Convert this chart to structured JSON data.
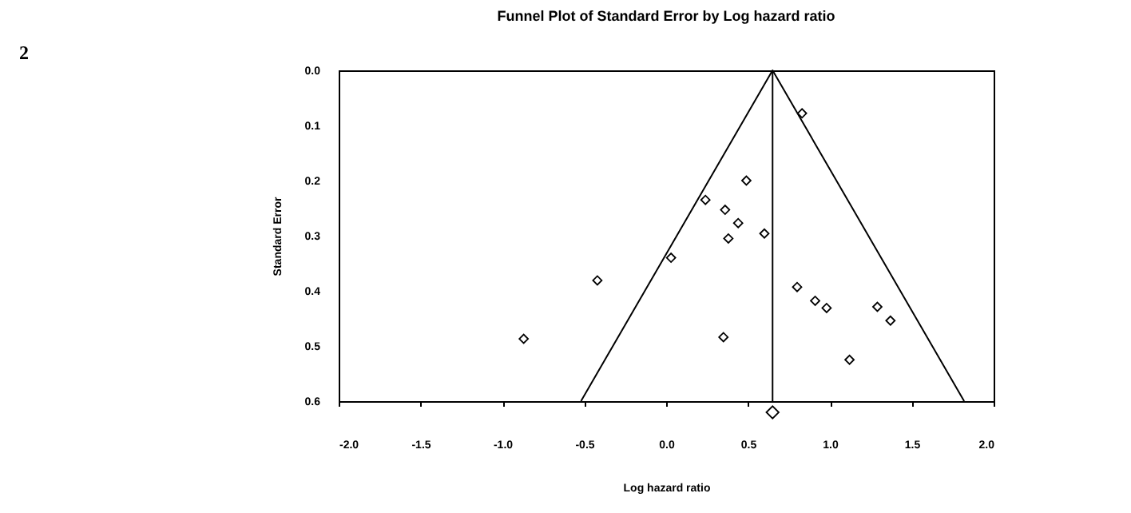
{
  "chart_data": {
    "type": "scatter",
    "title": "Funnel Plot of Standard Error by Log hazard ratio",
    "xlabel": "Log hazard ratio",
    "ylabel": "Standard Error",
    "annotations": [
      "2"
    ],
    "series": [
      {
        "color": "#000000",
        "marker": "diamond",
        "x": [
          0.83,
          0.49,
          0.24,
          0.36,
          0.44,
          0.38,
          0.6,
          0.03,
          -0.42,
          -0.87,
          0.35,
          0.8,
          0.91,
          0.98,
          1.29,
          1.37,
          1.12
        ],
        "values": [
          0.078,
          0.2,
          0.235,
          0.253,
          0.277,
          0.305,
          0.296,
          0.34,
          0.381,
          0.487,
          0.484,
          0.393,
          0.418,
          0.431,
          0.429,
          0.454,
          0.525
        ]
      },
      {
        "type": "line",
        "color": "#000000",
        "line_style": "solid",
        "x": [
          -0.52,
          0.65,
          1.82
        ],
        "values": [
          0.6,
          0.0,
          0.6
        ]
      }
    ],
    "ref_lines": [
      {
        "axis": "x",
        "value": 0.65,
        "color": "#000000"
      }
    ],
    "xlim": [
      -2.0,
      2.0
    ],
    "xticks": [
      {
        "value": -2.0,
        "label": "-2.0"
      },
      {
        "value": -1.5,
        "label": "-1.5"
      },
      {
        "value": -1.0,
        "label": "-1.0"
      },
      {
        "value": -0.5,
        "label": "-0.5"
      },
      {
        "value": 0,
        "label": "0.0"
      },
      {
        "value": 0.5,
        "label": "0.5"
      },
      {
        "value": 1.0,
        "label": "1.0"
      },
      {
        "value": 1.5,
        "label": "1.5"
      },
      {
        "value": 2.0,
        "label": "2.0"
      }
    ],
    "ylim": [
      0.6,
      0.0
    ],
    "yticks": [
      {
        "value": 0,
        "label": "0.0"
      },
      0.1,
      0.2,
      0.3,
      0.4,
      0.5,
      0.6
    ],
    "grid": false
  }
}
